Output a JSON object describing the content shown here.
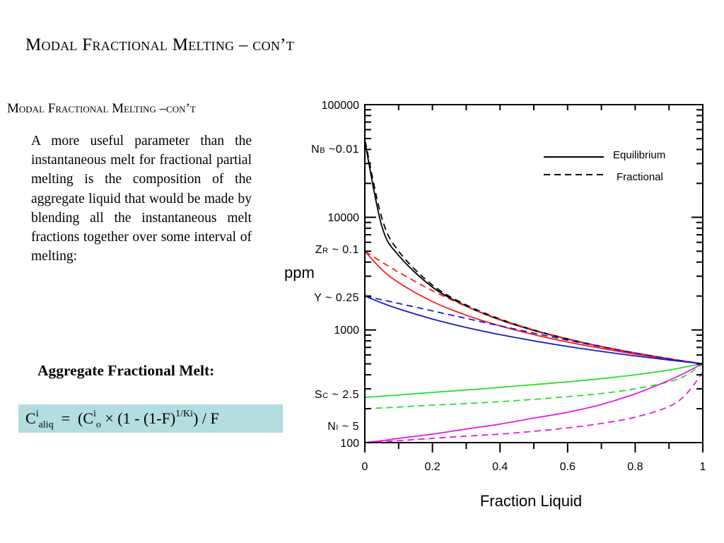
{
  "slide": {
    "title": "Modal Fractional Melting – con’t",
    "subtitle": "Modal Fractional Melting –con’t",
    "body": "A more useful parameter than the instantaneous melt for fractional partial melting is the composition of the aggregate liquid that would be made by blending all the instantaneous melt fractions together over some interval of melting:",
    "aggregate_heading": "Aggregate Fractional Melt:",
    "formula": {
      "lhs_C": "C",
      "lhs_sup": "i",
      "lhs_sub": "aliq",
      "eq": "=",
      "open": "(C",
      "c0_sup": "i",
      "c0_sub": "o",
      "mid": " × (1 - (1-F)",
      "exp": "1/Ki",
      "tail": ") / F"
    },
    "formula_bg": "#b3dde0"
  },
  "chart_data": {
    "type": "line",
    "title": "",
    "xlabel": "Fraction Liquid",
    "ylabel": "ppm",
    "xlim": [
      0,
      1
    ],
    "ylim": [
      100,
      100000
    ],
    "yscale": "log",
    "x_ticks": [
      "0",
      "0.2",
      "0.4",
      "0.6",
      "0.8",
      "1"
    ],
    "y_ticks": [
      "100",
      "1000",
      "10000",
      "100000"
    ],
    "legend": {
      "position": "top-right",
      "entries": [
        {
          "label": "Equilibrium",
          "style": "solid"
        },
        {
          "label": "Fractional",
          "style": "dashed"
        }
      ]
    },
    "element_labels": [
      {
        "label": "Nb ~0.01",
        "value": 50000
      },
      {
        "label": "Zr ~ 0.1",
        "value": 5000
      },
      {
        "label": "Y ~ 0.25",
        "value": 2000
      },
      {
        "label": "Sc ~ 2.5",
        "value": 200
      },
      {
        "label": "Ni ~ 5",
        "value": 115
      }
    ],
    "x": [
      0.001,
      0.05,
      0.1,
      0.2,
      0.3,
      0.4,
      0.5,
      0.6,
      0.7,
      0.8,
      0.9,
      0.95,
      1.0
    ],
    "series": [
      {
        "name": "Nb equilibrium",
        "element": "Nb",
        "D": 0.01,
        "style": "solid",
        "color": "#000000",
        "values": [
          45500,
          8400,
          4590,
          2400,
          1630,
          1230,
          990,
          828,
          711,
          623,
          555,
          526,
          500
        ]
      },
      {
        "name": "Nb fractional",
        "element": "Nb",
        "D": 0.01,
        "style": "dashed",
        "color": "#000000",
        "values": [
          47600,
          9940,
          5000,
          2500,
          1667,
          1250,
          1000,
          833,
          714,
          625,
          556,
          526,
          500
        ]
      },
      {
        "name": "Zr equilibrium",
        "element": "Zr",
        "D": 0.1,
        "style": "solid",
        "color": "#ff1a1a",
        "values": [
          4955,
          3448,
          2632,
          1786,
          1351,
          1087,
          909,
          781,
          685,
          610,
          549,
          524,
          500
        ]
      },
      {
        "name": "Zr fractional",
        "element": "Zr",
        "D": 0.1,
        "style": "dashed",
        "color": "#ff1a1a",
        "values": [
          4978,
          4013,
          3257,
          2232,
          1620,
          1242,
          999,
          833,
          714,
          625,
          556,
          526,
          500
        ]
      },
      {
        "name": "Y equilibrium",
        "element": "Y",
        "D": 0.25,
        "style": "solid",
        "color": "#1a1acc",
        "values": [
          1994,
          1739,
          1538,
          1250,
          1053,
          909,
          800,
          714,
          645,
          588,
          541,
          520,
          500
        ]
      },
      {
        "name": "Y fractional",
        "element": "Y",
        "D": 0.25,
        "style": "dashed",
        "color": "#1a1acc",
        "values": [
          1997,
          1855,
          1720,
          1476,
          1267,
          1088,
          938,
          812,
          708,
          624,
          555,
          526,
          500
        ]
      },
      {
        "name": "Sc equilibrium",
        "element": "Sc",
        "D": 2.5,
        "style": "solid",
        "color": "#22e022",
        "values": [
          252,
          258,
          265,
          279,
          293,
          309,
          327,
          346,
          370,
          400,
          440,
          470,
          505
        ]
      },
      {
        "name": "Sc fractional",
        "element": "Sc",
        "D": 2.5,
        "style": "dashed",
        "color": "#22e022",
        "values": [
          200,
          203,
          207,
          215,
          222,
          231,
          242,
          256,
          273,
          300,
          346,
          395,
          500
        ]
      },
      {
        "name": "Ni equilibrium",
        "element": "Ni",
        "D": 5,
        "style": "solid",
        "color": "#e619e6",
        "values": [
          100,
          104,
          109,
          119,
          132,
          146,
          165,
          186,
          218,
          271,
          357,
          420,
          505
        ]
      },
      {
        "name": "Ni fractional",
        "element": "Ni",
        "D": 5,
        "style": "dashed",
        "color": "#e619e6",
        "values": [
          100,
          102,
          104,
          109,
          114,
          119,
          126,
          135,
          148,
          168,
          209,
          268,
          420
        ]
      }
    ]
  }
}
